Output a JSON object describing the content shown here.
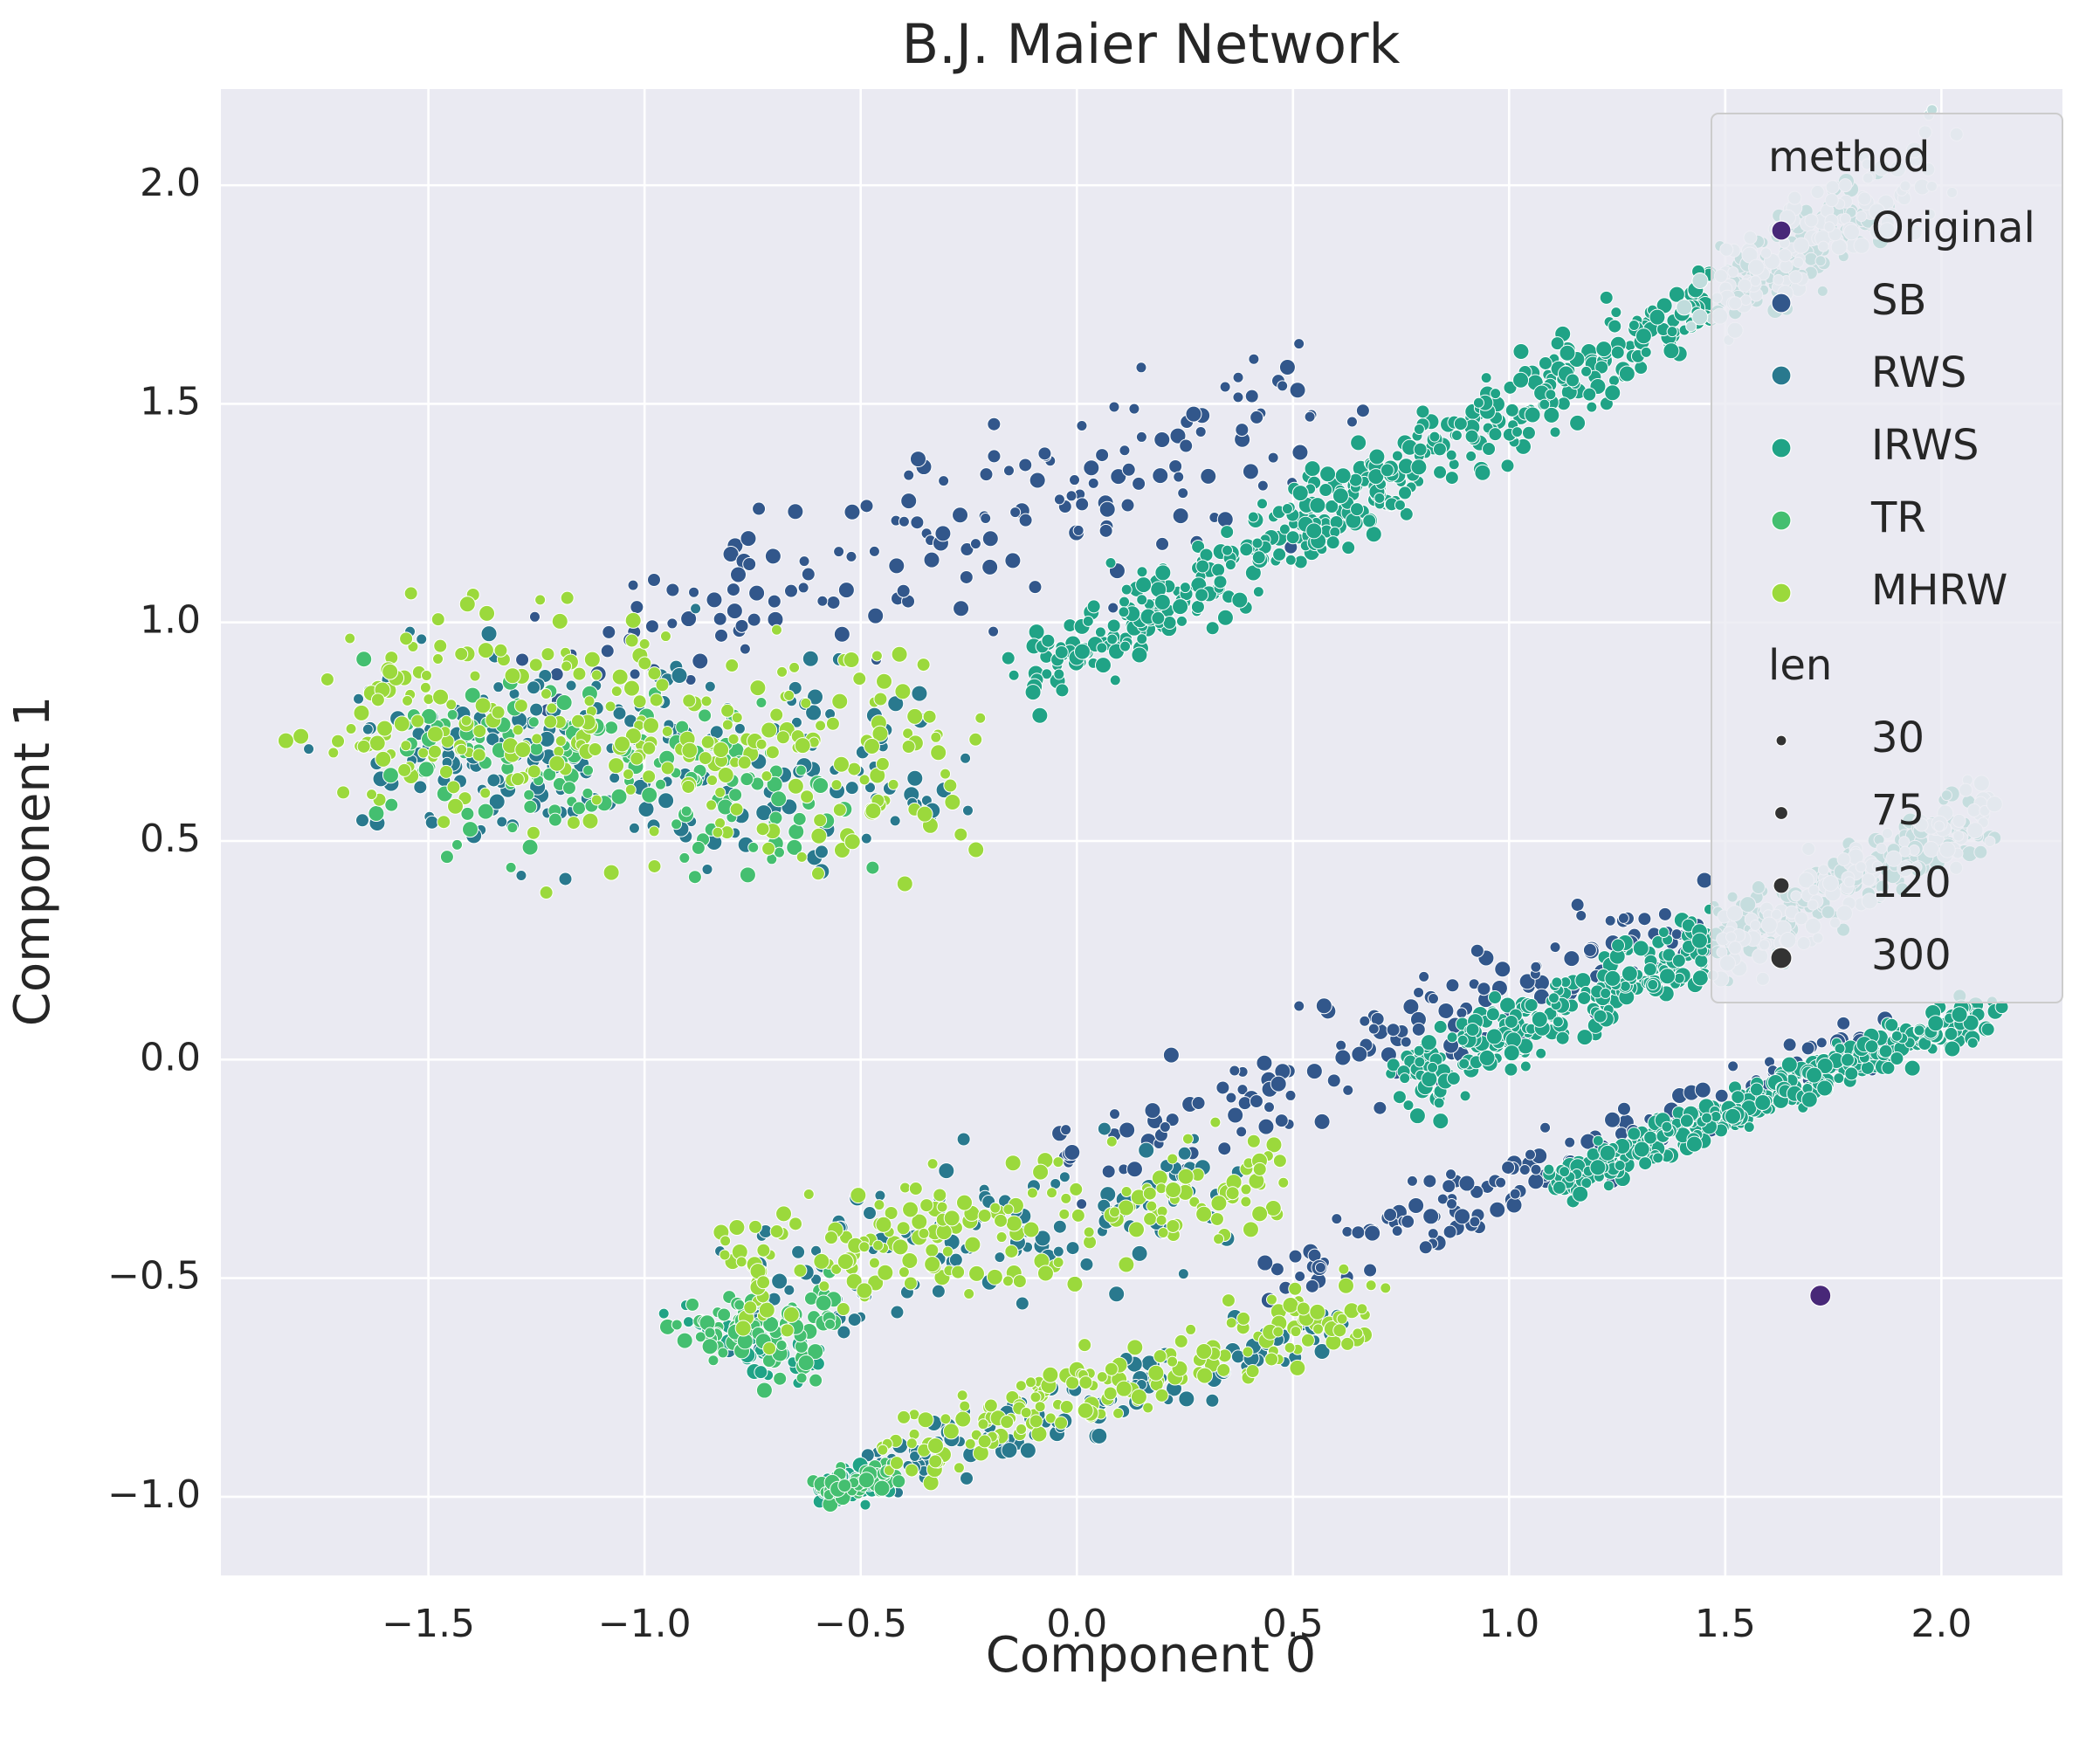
{
  "chart_data": {
    "type": "scatter",
    "title": "B.J. Maier Network",
    "xlabel": "Component 0",
    "ylabel": "Component 1",
    "xlim": [
      -1.98,
      2.28
    ],
    "ylim": [
      -1.18,
      2.22
    ],
    "xticks": [
      -1.5,
      -1.0,
      -0.5,
      0.0,
      0.5,
      1.0,
      1.5,
      2.0
    ],
    "xtick_labels": [
      "−1.5",
      "−1.0",
      "−0.5",
      "0.0",
      "0.5",
      "1.0",
      "1.5",
      "2.0"
    ],
    "yticks": [
      -1.0,
      -0.5,
      0.0,
      0.5,
      1.0,
      1.5,
      2.0
    ],
    "ytick_labels": [
      "−1.0",
      "−0.5",
      "0.0",
      "0.5",
      "1.0",
      "1.5",
      "2.0"
    ],
    "grid": true,
    "legend_placement": "top-right",
    "legend": {
      "hue_title": "method",
      "size_title": "len",
      "methods": [
        {
          "name": "Original",
          "color": "#482878"
        },
        {
          "name": "SB",
          "color": "#32578b"
        },
        {
          "name": "RWS",
          "color": "#29798e"
        },
        {
          "name": "IRWS",
          "color": "#20a386"
        },
        {
          "name": "TR",
          "color": "#44bf70"
        },
        {
          "name": "MHRW",
          "color": "#9bd93c"
        }
      ],
      "sizes": [
        {
          "label": "30",
          "value": 30
        },
        {
          "label": "75",
          "value": 75
        },
        {
          "label": "120",
          "value": 120
        },
        {
          "label": "300",
          "value": 300
        }
      ]
    },
    "series": [
      {
        "name": "Original",
        "color": "#482878",
        "len": 300,
        "points": [
          [
            1.72,
            -0.54
          ]
        ]
      },
      {
        "name": "SB",
        "color": "#32578b",
        "segments": [
          {
            "x0": -1.15,
            "y0": 0.93,
            "x1": 0.55,
            "y1": 1.45,
            "spread": 0.11,
            "count": 170
          },
          {
            "x0": -0.05,
            "y0": -0.25,
            "x1": 1.45,
            "y1": 0.32,
            "spread": 0.07,
            "count": 150
          },
          {
            "x0": 0.45,
            "y0": -0.5,
            "x1": 1.85,
            "y1": 0.05,
            "spread": 0.035,
            "count": 150
          }
        ]
      },
      {
        "name": "RWS",
        "color": "#29798e",
        "segments": [
          {
            "x0": -1.62,
            "y0": 0.72,
            "x1": -0.35,
            "y1": 0.66,
            "spread": 0.12,
            "count": 200
          },
          {
            "x0": -0.8,
            "y0": -0.55,
            "x1": 0.35,
            "y1": -0.28,
            "spread": 0.08,
            "count": 120
          },
          {
            "x0": -0.5,
            "y0": -0.95,
            "x1": 0.6,
            "y1": -0.62,
            "spread": 0.04,
            "count": 120
          }
        ]
      },
      {
        "name": "IRWS",
        "color": "#20a386",
        "segments": [
          {
            "x0": -0.1,
            "y0": 0.88,
            "x1": 1.85,
            "y1": 1.95,
            "spread": 0.05,
            "count": 550
          },
          {
            "x0": 0.75,
            "y0": -0.05,
            "x1": 2.1,
            "y1": 0.55,
            "spread": 0.04,
            "count": 400
          },
          {
            "x0": 1.1,
            "y0": -0.28,
            "x1": 2.12,
            "y1": 0.12,
            "spread": 0.025,
            "count": 350
          },
          {
            "x0": -0.95,
            "y0": -0.62,
            "x1": -0.6,
            "y1": -0.68,
            "spread": 0.03,
            "count": 40
          },
          {
            "x0": -0.6,
            "y0": -0.98,
            "x1": -0.45,
            "y1": -0.96,
            "spread": 0.02,
            "count": 40
          }
        ]
      },
      {
        "name": "TR",
        "color": "#44bf70",
        "segments": [
          {
            "x0": -1.55,
            "y0": 0.7,
            "x1": -0.6,
            "y1": 0.6,
            "spread": 0.1,
            "count": 150
          },
          {
            "x0": -0.9,
            "y0": -0.62,
            "x1": -0.55,
            "y1": -0.62,
            "spread": 0.05,
            "count": 90
          },
          {
            "x0": -0.6,
            "y0": -0.98,
            "x1": -0.4,
            "y1": -0.95,
            "spread": 0.02,
            "count": 50
          }
        ]
      },
      {
        "name": "MHRW",
        "color": "#9bd93c",
        "segments": [
          {
            "x0": -1.7,
            "y0": 0.82,
            "x1": -0.3,
            "y1": 0.68,
            "spread": 0.13,
            "count": 280
          },
          {
            "x0": -0.8,
            "y0": -0.5,
            "x1": 0.45,
            "y1": -0.28,
            "spread": 0.07,
            "count": 200
          },
          {
            "x0": -0.45,
            "y0": -0.9,
            "x1": 0.68,
            "y1": -0.56,
            "spread": 0.045,
            "count": 170
          }
        ]
      },
      {
        "name": "highlight",
        "color": "#c0dcdc",
        "segments": [
          {
            "x0": 1.45,
            "y0": 1.72,
            "x1": 1.98,
            "y1": 2.05,
            "spread": 0.05,
            "count": 120
          },
          {
            "x0": 1.5,
            "y0": 0.25,
            "x1": 2.12,
            "y1": 0.58,
            "spread": 0.04,
            "count": 130
          }
        ]
      }
    ]
  }
}
